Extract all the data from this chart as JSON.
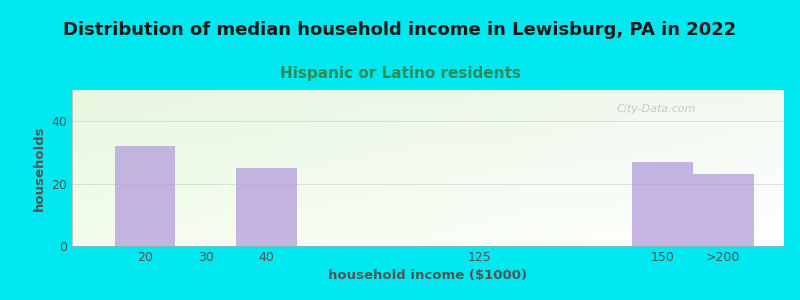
{
  "title": "Distribution of median household income in Lewisburg, PA in 2022",
  "subtitle": "Hispanic or Latino residents",
  "xlabel": "household income ($1000)",
  "ylabel": "households",
  "categories": [
    "20",
    "30",
    "40",
    "125",
    "150",
    ">200"
  ],
  "values": [
    32,
    0,
    25,
    0,
    27,
    23
  ],
  "bar_color": "#b39ddb",
  "background_color": "#00e8f0",
  "title_color": "#1a1a1a",
  "subtitle_color": "#2e8b57",
  "axis_color": "#555555",
  "yticks": [
    0,
    20,
    40
  ],
  "ylim": [
    0,
    50
  ],
  "title_fontsize": 13,
  "subtitle_fontsize": 11,
  "label_fontsize": 9.5,
  "tick_fontsize": 9,
  "x_positions": [
    1.0,
    2.0,
    3.0,
    6.5,
    9.5,
    10.5
  ],
  "bar_width": 1.0,
  "xlim": [
    -0.2,
    11.5
  ]
}
